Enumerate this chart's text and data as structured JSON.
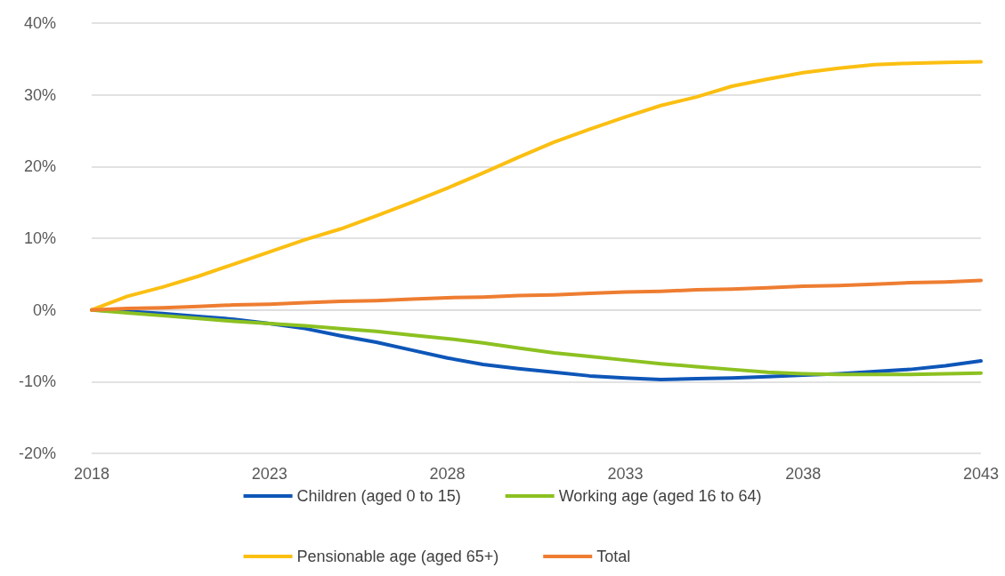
{
  "chart_data": {
    "type": "line",
    "x": [
      2018,
      2019,
      2020,
      2021,
      2022,
      2023,
      2024,
      2025,
      2026,
      2027,
      2028,
      2029,
      2030,
      2031,
      2032,
      2033,
      2034,
      2035,
      2036,
      2037,
      2038,
      2039,
      2040,
      2041,
      2042,
      2043
    ],
    "xlim": [
      2018,
      2043
    ],
    "xticks": [
      2018,
      2023,
      2028,
      2033,
      2038,
      2043
    ],
    "ylim": [
      -20,
      40
    ],
    "yticks": [
      {
        "value": -20,
        "label": "-20%"
      },
      {
        "value": -10,
        "label": "-10%"
      },
      {
        "value": 0,
        "label": "0%"
      },
      {
        "value": 10,
        "label": "10%"
      },
      {
        "value": 20,
        "label": "20%"
      },
      {
        "value": 30,
        "label": "30%"
      },
      {
        "value": 40,
        "label": "40%"
      }
    ],
    "grid": "y",
    "legend": "bottom",
    "marker": "none",
    "line_style": "solid",
    "series": [
      {
        "name": "Children (aged 0 to 15)",
        "color": "#0e56b8",
        "values": [
          0,
          -0.2,
          -0.5,
          -0.9,
          -1.3,
          -1.9,
          -2.6,
          -3.6,
          -4.5,
          -5.6,
          -6.7,
          -7.6,
          -8.2,
          -8.7,
          -9.2,
          -9.5,
          -9.7,
          -9.6,
          -9.5,
          -9.3,
          -9.1,
          -8.9,
          -8.6,
          -8.3,
          -7.8,
          -7.1
        ]
      },
      {
        "name": "Working age (aged 16 to 64)",
        "color": "#8cc121",
        "values": [
          0,
          -0.4,
          -0.8,
          -1.2,
          -1.6,
          -1.9,
          -2.2,
          -2.6,
          -3.0,
          -3.5,
          -4.0,
          -4.6,
          -5.3,
          -6.0,
          -6.5,
          -7.0,
          -7.5,
          -7.9,
          -8.3,
          -8.7,
          -8.9,
          -9.0,
          -9.0,
          -9.0,
          -8.9,
          -8.8
        ]
      },
      {
        "name": "Pensionable age (aged 65+)",
        "color": "#fbbf12",
        "values": [
          0,
          1.9,
          3.2,
          4.7,
          6.4,
          8.1,
          9.8,
          11.3,
          13.1,
          15.0,
          17.0,
          19.1,
          21.3,
          23.4,
          25.2,
          26.9,
          28.5,
          29.7,
          31.2,
          32.2,
          33.1,
          33.7,
          34.2,
          34.4,
          34.5,
          34.6
        ]
      },
      {
        "name": "Total",
        "color": "#ee7d31",
        "values": [
          0,
          0.2,
          0.3,
          0.5,
          0.7,
          0.8,
          1.0,
          1.2,
          1.3,
          1.5,
          1.7,
          1.8,
          2.0,
          2.1,
          2.3,
          2.5,
          2.6,
          2.8,
          2.9,
          3.1,
          3.3,
          3.4,
          3.6,
          3.8,
          3.9,
          4.1
        ]
      }
    ]
  }
}
